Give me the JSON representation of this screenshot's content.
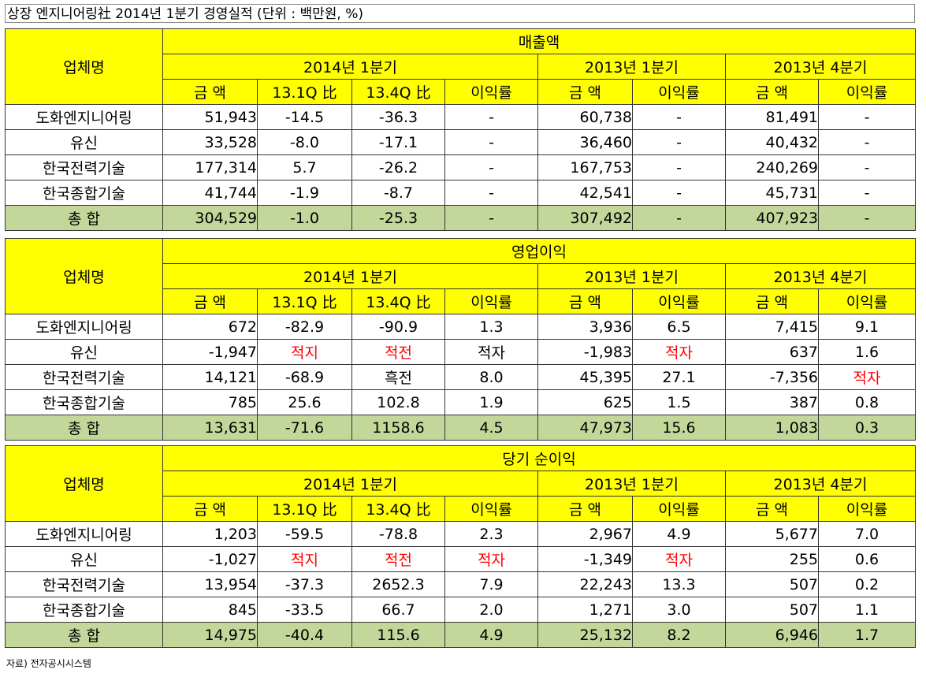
{
  "title": "상장 엔지니어링社 2014년  1분기 경영실적 (단위 : 백만원, %)",
  "source": "자료) 전자공시시스템",
  "colors": {
    "header_bg": "#ffff00",
    "total_bg": "#c4d79b",
    "negative_text": "#ff0000"
  },
  "sections": [
    {
      "title": "매출액",
      "company_header": "업체명",
      "periods": [
        "2014년 1분기",
        "2013년 1분기",
        "2013년 4분기"
      ],
      "columns": [
        "금 액",
        "13.1Q 比",
        "13.4Q 比",
        "이익률",
        "금 액",
        "이익률",
        "금 액",
        "이익률"
      ],
      "rows": [
        {
          "name": "도화엔지니어링",
          "cells": [
            "51,943",
            "-14.5",
            "-36.3",
            "-",
            "60,738",
            "-",
            "81,491",
            "-"
          ]
        },
        {
          "name": "유신",
          "cells": [
            "33,528",
            "-8.0",
            "-17.1",
            "-",
            "36,460",
            "-",
            "40,432",
            "-"
          ]
        },
        {
          "name": "한국전력기술",
          "cells": [
            "177,314",
            "5.7",
            "-26.2",
            "-",
            "167,753",
            "-",
            "240,269",
            "-"
          ]
        },
        {
          "name": "한국종합기술",
          "cells": [
            "41,744",
            "-1.9",
            "-8.7",
            "-",
            "42,541",
            "-",
            "45,731",
            "-"
          ]
        }
      ],
      "total": {
        "name": "총 합",
        "cells": [
          "304,529",
          "-1.0",
          "-25.3",
          "-",
          "307,492",
          "-",
          "407,923",
          "-"
        ]
      }
    },
    {
      "title": "영업이익",
      "company_header": "업체명",
      "periods": [
        "2014년 1분기",
        "2013년 1분기",
        "2013년 4분기"
      ],
      "columns": [
        "금 액",
        "13.1Q 比",
        "13.4Q 比",
        "이익률",
        "금 액",
        "이익률",
        "금 액",
        "이익률"
      ],
      "rows": [
        {
          "name": "도화엔지니어링",
          "cells": [
            "672",
            "-82.9",
            "-90.9",
            "1.3",
            "3,936",
            "6.5",
            "7,415",
            "9.1"
          ]
        },
        {
          "name": "유신",
          "cells": [
            "-1,947",
            "적지",
            "적전",
            "적자",
            "-1,983",
            "적자",
            "637",
            "1.6"
          ]
        },
        {
          "name": "한국전력기술",
          "cells": [
            "14,121",
            "-68.9",
            "흑전",
            "8.0",
            "45,395",
            "27.1",
            "-7,356",
            "적자"
          ]
        },
        {
          "name": "한국종합기술",
          "cells": [
            "785",
            "25.6",
            "102.8",
            "1.9",
            "625",
            "1.5",
            "387",
            "0.8"
          ]
        }
      ],
      "total": {
        "name": "총 합",
        "cells": [
          "13,631",
          "-71.6",
          "1158.6",
          "4.5",
          "47,973",
          "15.6",
          "1,083",
          "0.3"
        ]
      }
    },
    {
      "title": "당기 순이익",
      "company_header": "업체명",
      "periods": [
        "2014년 1분기",
        "2013년 1분기",
        "2013년 4분기"
      ],
      "columns": [
        "금 액",
        "13.1Q 比",
        "13.4Q 比",
        "이익률",
        "금 액",
        "이익률",
        "금 액",
        "이익률"
      ],
      "rows": [
        {
          "name": "도화엔지니어링",
          "cells": [
            "1,203",
            "-59.5",
            "-78.8",
            "2.3",
            "2,967",
            "4.9",
            "5,677",
            "7.0"
          ]
        },
        {
          "name": "유신",
          "cells": [
            "-1,027",
            "적지",
            "적전",
            "적자",
            "-1,349",
            "적자",
            "255",
            "0.6"
          ]
        },
        {
          "name": "한국전력기술",
          "cells": [
            "13,954",
            "-37.3",
            "2652.3",
            "7.9",
            "22,243",
            "13.3",
            "507",
            "0.2"
          ]
        },
        {
          "name": "한국종합기술",
          "cells": [
            "845",
            "-33.5",
            "66.7",
            "2.0",
            "1,271",
            "3.0",
            "507",
            "1.1"
          ]
        }
      ],
      "total": {
        "name": "총 합",
        "cells": [
          "14,975",
          "-40.4",
          "115.6",
          "4.9",
          "25,132",
          "8.2",
          "6,946",
          "1.7"
        ]
      }
    }
  ]
}
